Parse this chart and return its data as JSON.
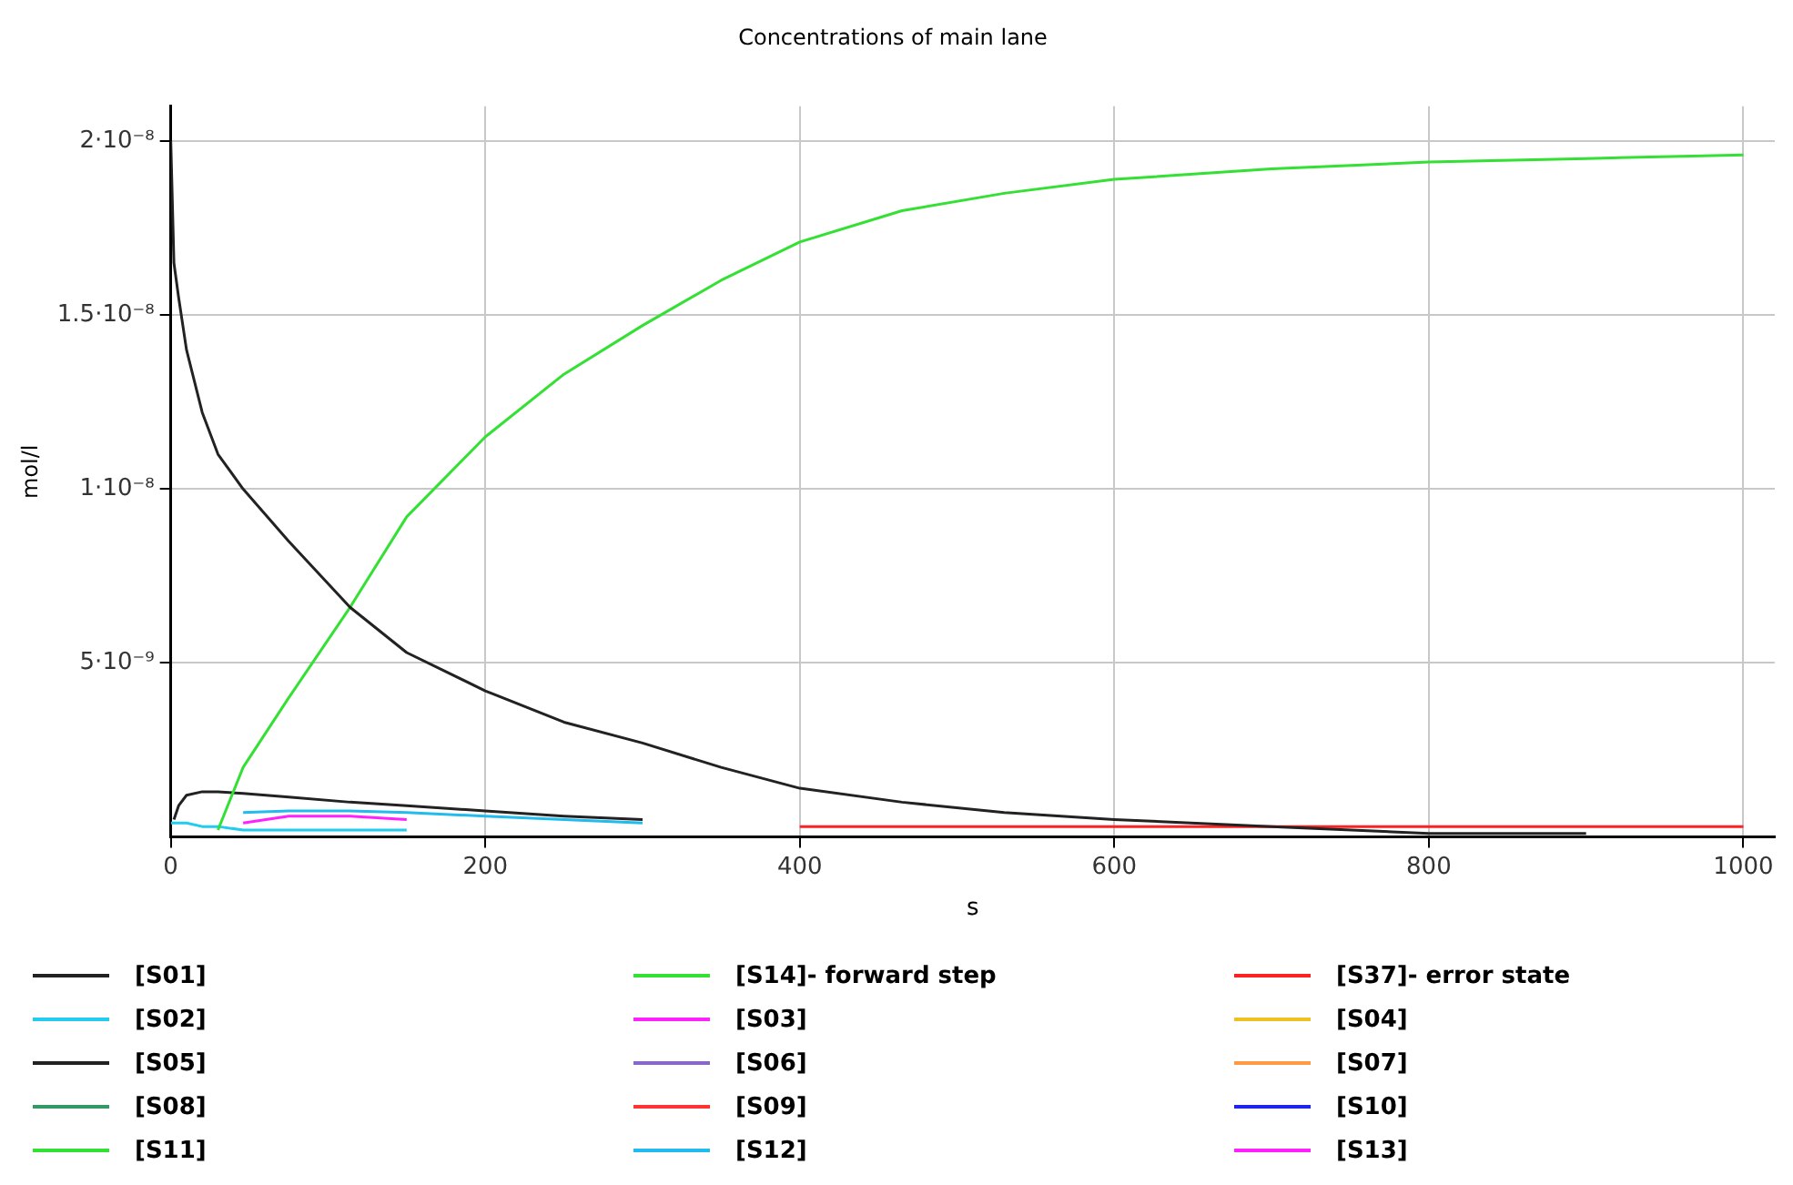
{
  "chart_data": {
    "type": "line",
    "title": "Concentrations of main lane",
    "xlabel": "s",
    "ylabel": "mol/l",
    "x": [
      0,
      2,
      5,
      10,
      20,
      30,
      46,
      75,
      114,
      150,
      200,
      250,
      300,
      350,
      400,
      465,
      530,
      600,
      700,
      800,
      900,
      1000
    ],
    "xlim": [
      0,
      1020
    ],
    "xticks": [
      0,
      200,
      400,
      600,
      800,
      1000
    ],
    "ylim": [
      0,
      2.1e-08
    ],
    "yticks": [
      {
        "value": 5e-09,
        "label": "5·10⁻⁹"
      },
      {
        "value": 1e-08,
        "label": "1·10⁻⁸"
      },
      {
        "value": 1.5e-08,
        "label": "1.5·10⁻⁸"
      },
      {
        "value": 2e-08,
        "label": "2·10⁻⁸"
      }
    ],
    "grid": true,
    "legend": "bottom",
    "marker": "none",
    "line_style": "solid",
    "series": [
      {
        "name": "[S01]",
        "color": "#222222",
        "values": [
          2e-08,
          1.65e-08,
          1.55e-08,
          1.4e-08,
          1.22e-08,
          1.1e-08,
          1e-08,
          8.5e-09,
          6.6e-09,
          5.3e-09,
          4.2e-09,
          3.3e-09,
          2.7e-09,
          2e-09,
          1.4e-09,
          1e-09,
          7e-10,
          5e-10,
          3e-10,
          1e-10,
          1e-10,
          null
        ]
      },
      {
        "name": "[S14]- forward step",
        "color": "#33e033",
        "values": [
          null,
          null,
          null,
          null,
          null,
          2e-10,
          2e-09,
          4e-09,
          6.6e-09,
          9.2e-09,
          1.15e-08,
          1.33e-08,
          1.47e-08,
          1.6e-08,
          1.71e-08,
          1.8e-08,
          1.85e-08,
          1.89e-08,
          1.92e-08,
          1.94e-08,
          1.95e-08,
          1.96e-08
        ]
      },
      {
        "name": "[S37]- error state",
        "color": "#ff2020",
        "values": [
          null,
          null,
          null,
          null,
          null,
          null,
          null,
          null,
          null,
          null,
          null,
          null,
          null,
          null,
          3e-10,
          3e-10,
          3e-10,
          3e-10,
          3e-10,
          3e-10,
          3e-10,
          3e-10
        ]
      },
      {
        "name": "[S02]",
        "color": "#22ccee",
        "values": [
          4e-10,
          4e-10,
          4e-10,
          4e-10,
          3e-10,
          3e-10,
          2e-10,
          2e-10,
          2e-10,
          2e-10,
          null,
          null,
          null,
          null,
          null,
          null,
          null,
          null,
          null,
          null,
          null,
          null
        ]
      },
      {
        "name": "[S03]",
        "color": "#ff22ff",
        "values": [
          null,
          null,
          null,
          null,
          null,
          null,
          4e-10,
          6e-10,
          6e-10,
          5e-10,
          null,
          null,
          null,
          null,
          null,
          null,
          null,
          null,
          null,
          null,
          null,
          null
        ]
      },
      {
        "name": "[S04]",
        "color": "#f0c020",
        "values": [
          null,
          null,
          null,
          null,
          null,
          null,
          null,
          null,
          null,
          null,
          null,
          null,
          null,
          null,
          null,
          null,
          null,
          null,
          null,
          null,
          null,
          null
        ]
      },
      {
        "name": "[S05]",
        "color": "#222222",
        "values": [
          null,
          5e-10,
          9e-10,
          1.2e-09,
          1.3e-09,
          1.3e-09,
          1.25e-09,
          1.15e-09,
          1e-09,
          9e-10,
          7.5e-10,
          6e-10,
          5e-10,
          null,
          null,
          null,
          null,
          null,
          null,
          null,
          null,
          null
        ]
      },
      {
        "name": "[S06]",
        "color": "#8866cc",
        "values": [
          null,
          null,
          null,
          null,
          null,
          null,
          null,
          null,
          null,
          null,
          null,
          null,
          null,
          null,
          null,
          null,
          null,
          null,
          null,
          null,
          null,
          null
        ]
      },
      {
        "name": "[S07]",
        "color": "#ff9944",
        "values": [
          null,
          null,
          null,
          null,
          null,
          null,
          null,
          null,
          null,
          null,
          null,
          null,
          null,
          null,
          null,
          null,
          null,
          null,
          null,
          null,
          null,
          null
        ]
      },
      {
        "name": "[S08]",
        "color": "#339966",
        "values": [
          null,
          null,
          null,
          null,
          null,
          null,
          null,
          null,
          null,
          null,
          null,
          null,
          null,
          null,
          null,
          null,
          null,
          null,
          null,
          null,
          null,
          null
        ]
      },
      {
        "name": "[S09]",
        "color": "#ff3333",
        "values": [
          null,
          null,
          null,
          null,
          null,
          null,
          null,
          null,
          null,
          null,
          null,
          null,
          null,
          null,
          null,
          null,
          null,
          null,
          null,
          null,
          null,
          null
        ]
      },
      {
        "name": "[S10]",
        "color": "#2222ee",
        "values": [
          null,
          null,
          null,
          null,
          null,
          null,
          null,
          null,
          null,
          null,
          null,
          null,
          null,
          null,
          null,
          null,
          null,
          null,
          null,
          null,
          null,
          null
        ]
      },
      {
        "name": "[S11]",
        "color": "#33e033",
        "values": [
          null,
          null,
          null,
          null,
          null,
          null,
          null,
          null,
          null,
          null,
          null,
          null,
          null,
          null,
          null,
          null,
          null,
          null,
          null,
          null,
          null,
          null
        ]
      },
      {
        "name": "[S12]",
        "color": "#22bbee",
        "values": [
          null,
          null,
          null,
          null,
          null,
          null,
          7e-10,
          7.5e-10,
          7.5e-10,
          7e-10,
          6e-10,
          5e-10,
          4e-10,
          null,
          null,
          null,
          null,
          null,
          null,
          null,
          null,
          null
        ]
      },
      {
        "name": "[S13]",
        "color": "#ff22ff",
        "values": [
          null,
          null,
          null,
          null,
          null,
          null,
          null,
          null,
          null,
          null,
          null,
          null,
          null,
          null,
          null,
          null,
          null,
          null,
          null,
          null,
          null,
          null
        ]
      }
    ]
  }
}
